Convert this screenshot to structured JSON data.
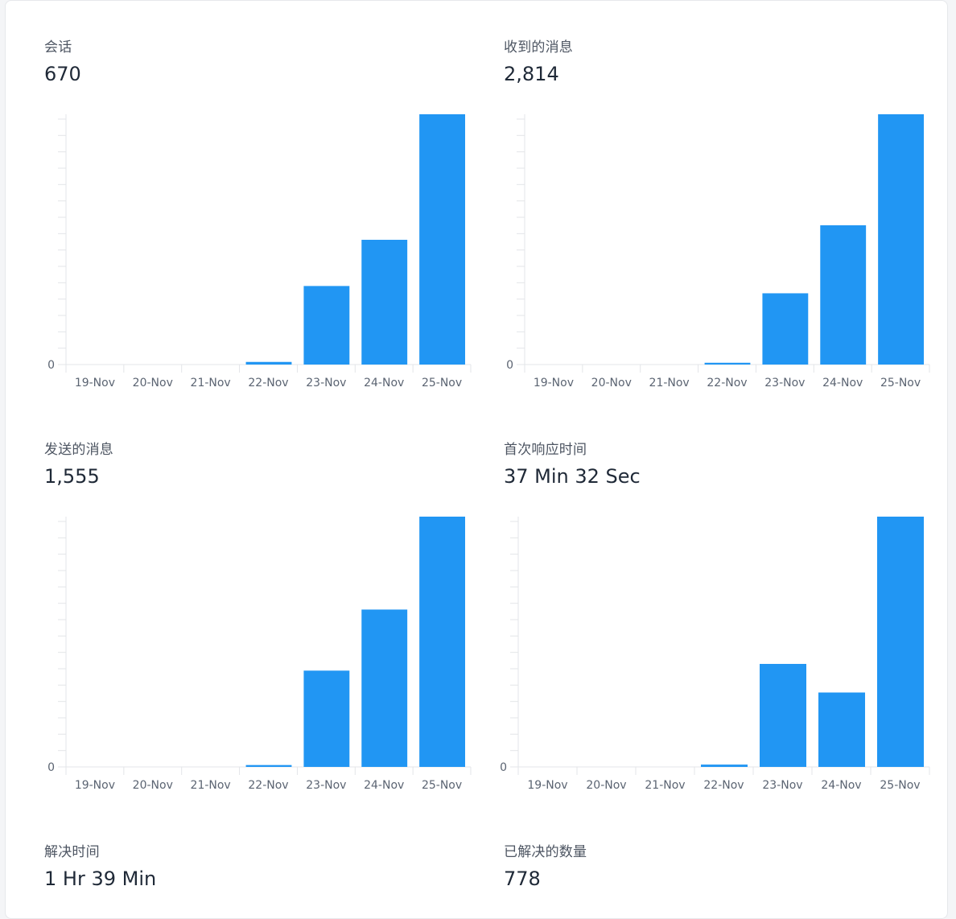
{
  "metrics": [
    {
      "label": "会话",
      "value": "670"
    },
    {
      "label": "收到的消息",
      "value": "2,814"
    },
    {
      "label": "发送的消息",
      "value": "1,555"
    },
    {
      "label": "首次响应时间",
      "value": "37 Min 32 Sec"
    },
    {
      "label": "解决时间",
      "value": "1 Hr 39 Min"
    },
    {
      "label": "已解决的数量",
      "value": "778"
    }
  ],
  "colors": {
    "bar": "#2196f3",
    "axis": "#e3e5e8",
    "text": "#5b6472"
  },
  "chart_data": [
    {
      "type": "bar",
      "categories": [
        "19-Nov",
        "20-Nov",
        "21-Nov",
        "22-Nov",
        "23-Nov",
        "24-Nov",
        "25-Nov"
      ],
      "values": [
        0,
        0,
        0,
        3.4,
        102,
        162,
        325
      ],
      "ytick_labels": [
        "0"
      ],
      "ylim": [
        0,
        325
      ]
    },
    {
      "type": "bar",
      "categories": [
        "19-Nov",
        "20-Nov",
        "21-Nov",
        "22-Nov",
        "23-Nov",
        "24-Nov",
        "25-Nov"
      ],
      "values": [
        0,
        0,
        0,
        10,
        400,
        782,
        1405
      ],
      "ytick_labels": [
        "0"
      ],
      "ylim": [
        0,
        1405
      ]
    },
    {
      "type": "bar",
      "categories": [
        "19-Nov",
        "20-Nov",
        "21-Nov",
        "22-Nov",
        "23-Nov",
        "24-Nov",
        "25-Nov"
      ],
      "values": [
        0,
        0,
        0,
        5,
        257,
        420,
        668
      ],
      "ytick_labels": [
        "0"
      ],
      "ylim": [
        0,
        668
      ]
    },
    {
      "type": "bar",
      "categories": [
        "19-Nov",
        "20-Nov",
        "21-Nov",
        "22-Nov",
        "23-Nov",
        "24-Nov",
        "25-Nov"
      ],
      "values": [
        0,
        0,
        0,
        9,
        400,
        289,
        972
      ],
      "ytick_labels": [
        "0"
      ],
      "ylim": [
        0,
        972
      ]
    }
  ]
}
